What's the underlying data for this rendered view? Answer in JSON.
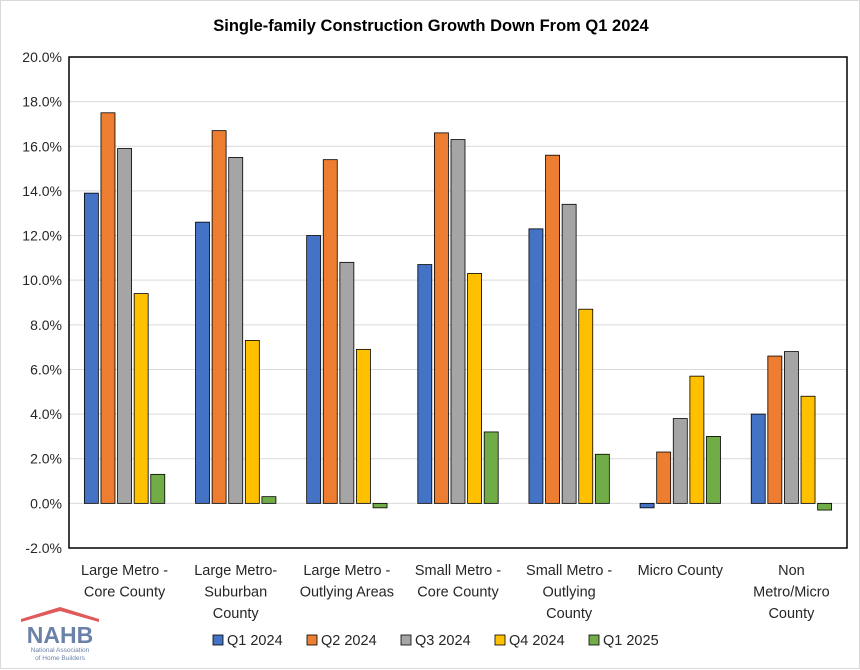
{
  "chart_data": {
    "type": "bar",
    "title": "Single-family Construction Growth Down From Q1 2024",
    "categories": [
      [
        "Large Metro -",
        "Core County"
      ],
      [
        "Large Metro-",
        "Suburban",
        "County"
      ],
      [
        "Large Metro -",
        "Outlying Areas"
      ],
      [
        "Small Metro -",
        "Core County"
      ],
      [
        "Small Metro -",
        "Outlying",
        "County"
      ],
      [
        "Micro County"
      ],
      [
        "Non",
        "Metro/Micro",
        "County"
      ]
    ],
    "series": [
      {
        "name": "Q1 2024",
        "color": "#4472c4",
        "values": [
          13.9,
          12.6,
          12.0,
          10.7,
          12.3,
          -0.2,
          4.0
        ]
      },
      {
        "name": "Q2 2024",
        "color": "#ed7d31",
        "values": [
          17.5,
          16.7,
          15.4,
          16.6,
          15.6,
          2.3,
          6.6
        ]
      },
      {
        "name": "Q3 2024",
        "color": "#a5a5a5",
        "values": [
          15.9,
          15.5,
          10.8,
          16.3,
          13.4,
          3.8,
          6.8
        ]
      },
      {
        "name": "Q4 2024",
        "color": "#ffc000",
        "values": [
          9.4,
          7.3,
          6.9,
          10.3,
          8.7,
          5.7,
          4.8
        ]
      },
      {
        "name": "Q1 2025",
        "color": "#70ad47",
        "values": [
          1.3,
          0.3,
          -0.2,
          3.2,
          2.2,
          3.0,
          -0.3
        ]
      }
    ],
    "ylim": [
      -2.0,
      20.0
    ],
    "yticks": [
      "-2.0%",
      "0.0%",
      "2.0%",
      "4.0%",
      "6.0%",
      "8.0%",
      "10.0%",
      "12.0%",
      "14.0%",
      "16.0%",
      "18.0%",
      "20.0%"
    ],
    "ytick_values": [
      -2,
      0,
      2,
      4,
      6,
      8,
      10,
      12,
      14,
      16,
      18,
      20
    ],
    "grid": true,
    "legend": "bottom"
  },
  "logo": {
    "name": "NAHB",
    "subtitle_line1": "National Association",
    "subtitle_line2": "of Home Builders"
  }
}
